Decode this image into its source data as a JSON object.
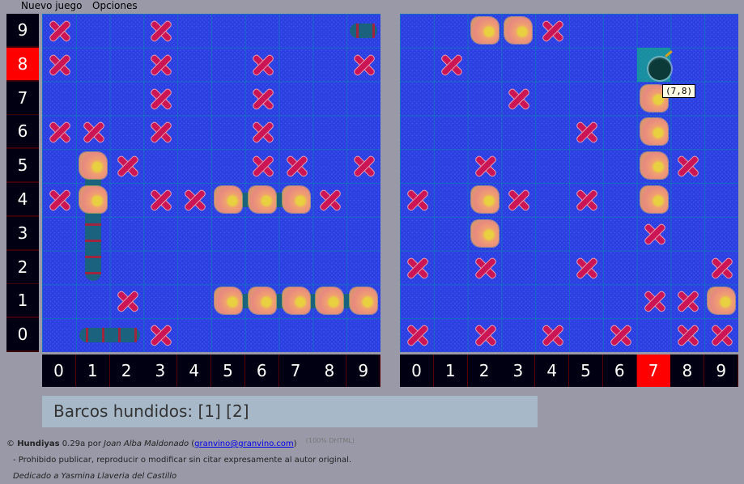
{
  "menu": {
    "new_game": "Nuevo juego",
    "options": "Opciones"
  },
  "row_labels": [
    "9",
    "8",
    "7",
    "6",
    "5",
    "4",
    "3",
    "2",
    "1",
    "0"
  ],
  "col_labels": [
    "0",
    "1",
    "2",
    "3",
    "4",
    "5",
    "6",
    "7",
    "8",
    "9"
  ],
  "active_row_label": "8",
  "active_col_label": "7",
  "legend": {
    "X": "miss",
    "H": "hit",
    "B": "bomb-cursor",
    ".": "water"
  },
  "player_board": {
    "rows": [
      "X..X......",
      "X..X..X..X",
      "...X..X...",
      "XX.X..X...",
      ".HX...XX.X",
      "XH.XXHHHX.",
      "..........",
      "..........",
      "..X..HHHHH",
      "...X......"
    ],
    "ships": [
      {
        "col": 1,
        "row": 2,
        "length": 4,
        "orientation": "vertical"
      },
      {
        "col": 5,
        "row": 4,
        "length": 3,
        "orientation": "horizontal"
      },
      {
        "col": 5,
        "row": 1,
        "length": 5,
        "orientation": "horizontal"
      },
      {
        "col": 1,
        "row": 0,
        "length": 2,
        "orientation": "horizontal"
      },
      {
        "col": 9,
        "row": 9,
        "length": 1,
        "orientation": "horizontal"
      }
    ]
  },
  "enemy_board": {
    "rows": [
      "..HHX.....",
      ".X.....B..",
      "...X...H..",
      ".....X.H..",
      "..X....HX.",
      "X.HX.X.H..",
      "..H....X..",
      "X.X..X...X",
      ".......XXH",
      "X.X.X.X.XX"
    ]
  },
  "tooltip": "(7,8)",
  "status": "Barcos hundidos: [1] [2]",
  "footer": {
    "copyright": "©",
    "app_name": "Hundiyas",
    "version": "0.29a por",
    "author": "Joan Alba Maldonado",
    "email": "granvino@granvino.com",
    "badge": "(100% DHTML)",
    "notice": "- Prohibido publicar, reproducir o modificar sin citar expresamente al autor original.",
    "dedication": "Dedicado a Yasmina Llaveria del Castillo"
  },
  "colors": {
    "active_label": "#ff0000",
    "label_bg": "#000012",
    "water": "#2b3fe0",
    "miss": "#cc1555",
    "status_bg": "#a7b8c8"
  }
}
